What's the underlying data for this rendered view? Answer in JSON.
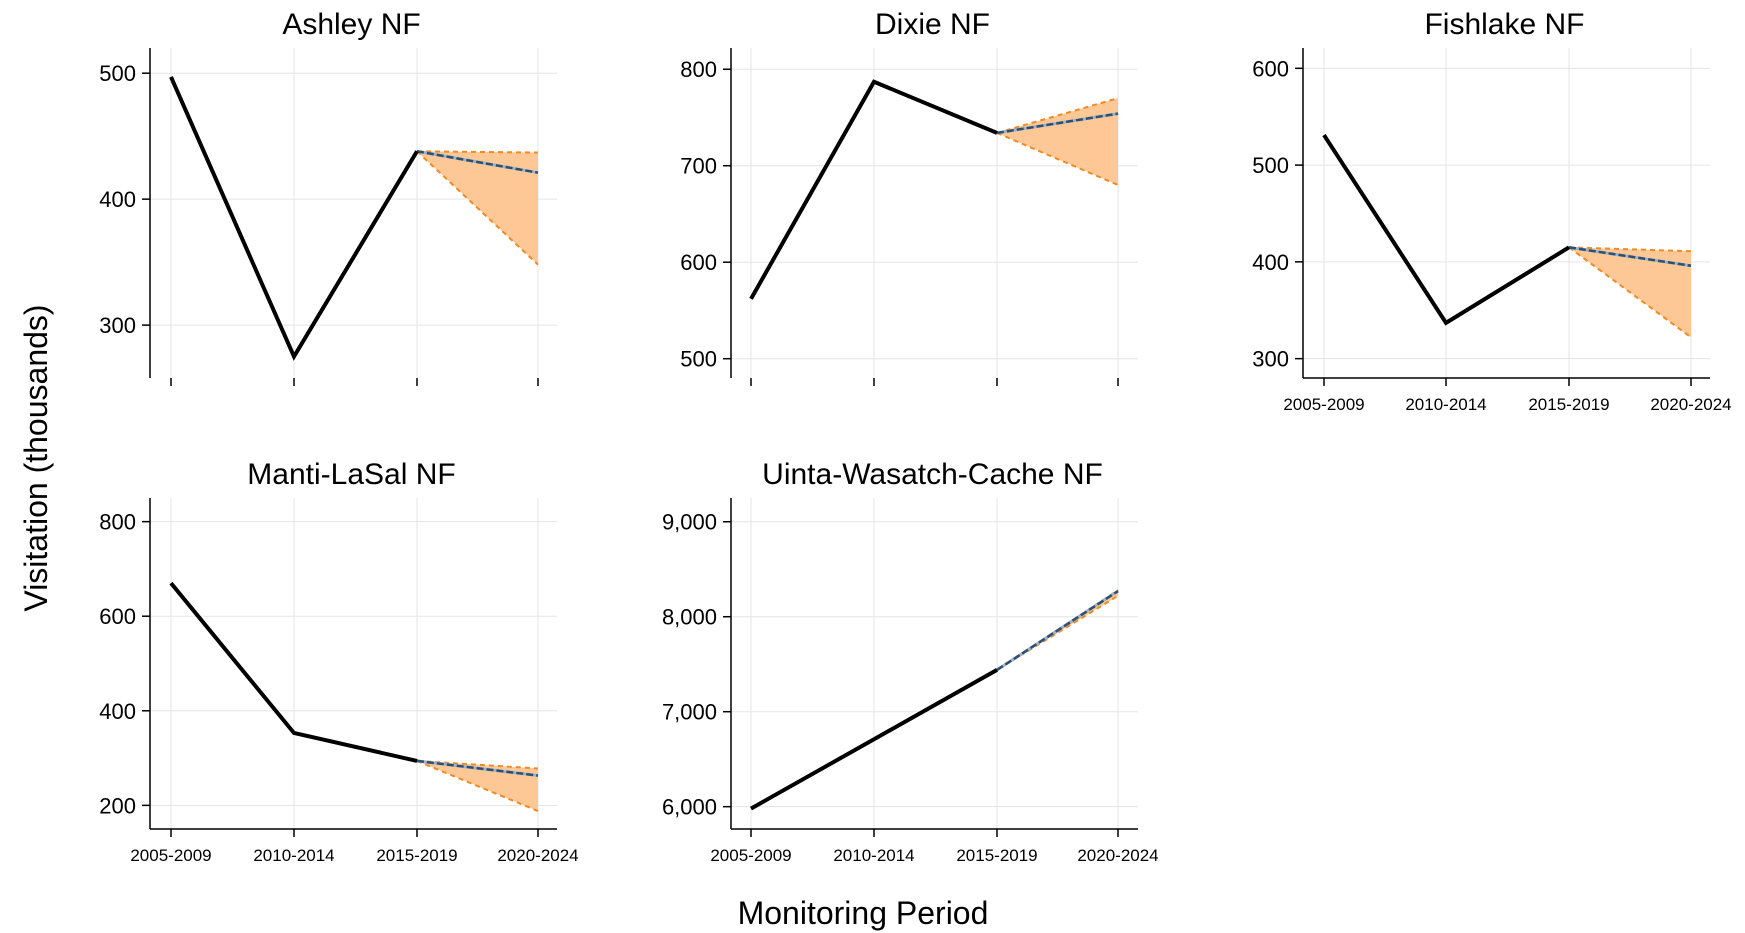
{
  "figure": {
    "ylabel": "Visitation (thousands)",
    "xlabel": "Monitoring Period"
  },
  "colors": {
    "observed_line": "#000000",
    "forecast_line": "#2f4f6f",
    "forecast_band_fill": "#fdc896",
    "forecast_band_edge": "#f08a24",
    "grid": "#e5e5e5"
  },
  "chart_data": [
    {
      "type": "line",
      "title": "Ashley NF",
      "categories": [
        "2005-2009",
        "2010-2014",
        "2015-2019",
        "2020-2024"
      ],
      "ylim": [
        258,
        520
      ],
      "yticks": [
        300,
        400,
        500
      ],
      "ytick_labels": [
        "300",
        "400",
        "500"
      ],
      "show_xtick_labels": false,
      "observed": [
        497,
        275,
        438
      ],
      "forecast": {
        "from": 2,
        "values": [
          438,
          421
        ],
        "upper": [
          438,
          437
        ],
        "lower": [
          438,
          348
        ]
      },
      "grid": true
    },
    {
      "type": "line",
      "title": "Dixie NF",
      "categories": [
        "2005-2009",
        "2010-2014",
        "2015-2019",
        "2020-2024"
      ],
      "ylim": [
        480,
        822
      ],
      "yticks": [
        500,
        600,
        700,
        800
      ],
      "ytick_labels": [
        "500",
        "600",
        "700",
        "800"
      ],
      "show_xtick_labels": false,
      "observed": [
        562,
        787,
        734
      ],
      "forecast": {
        "from": 2,
        "values": [
          734,
          754
        ],
        "upper": [
          734,
          770
        ],
        "lower": [
          734,
          680
        ]
      },
      "grid": true
    },
    {
      "type": "line",
      "title": "Fishlake NF",
      "categories": [
        "2005-2009",
        "2010-2014",
        "2015-2019",
        "2020-2024"
      ],
      "ylim": [
        280,
        621
      ],
      "yticks": [
        300,
        400,
        500,
        600
      ],
      "ytick_labels": [
        "300",
        "400",
        "500",
        "600"
      ],
      "show_xtick_labels": true,
      "observed": [
        531,
        337,
        415
      ],
      "forecast": {
        "from": 2,
        "values": [
          415,
          396
        ],
        "upper": [
          415,
          411
        ],
        "lower": [
          415,
          322
        ]
      },
      "grid": true
    },
    {
      "type": "line",
      "title": "Manti-LaSal NF",
      "categories": [
        "2005-2009",
        "2010-2014",
        "2015-2019",
        "2020-2024"
      ],
      "ylim": [
        150,
        850
      ],
      "yticks": [
        200,
        400,
        600,
        800
      ],
      "ytick_labels": [
        "200",
        "400",
        "600",
        "800"
      ],
      "show_xtick_labels": true,
      "observed": [
        670,
        353,
        294
      ],
      "forecast": {
        "from": 2,
        "values": [
          294,
          263
        ],
        "upper": [
          294,
          278
        ],
        "lower": [
          294,
          188
        ]
      },
      "grid": true
    },
    {
      "type": "line",
      "title": "Uinta-Wasatch-Cache NF",
      "categories": [
        "2005-2009",
        "2010-2014",
        "2015-2019",
        "2020-2024"
      ],
      "ylim": [
        5765,
        9250
      ],
      "yticks": [
        6000,
        7000,
        8000,
        9000
      ],
      "ytick_labels": [
        "6,000",
        "7,000",
        "8,000",
        "9,000"
      ],
      "show_xtick_labels": true,
      "observed": [
        5980,
        6710,
        7440
      ],
      "forecast": {
        "from": 2,
        "values": [
          7440,
          8270
        ],
        "upper": [
          7440,
          8280
        ],
        "lower": [
          7440,
          8220
        ]
      },
      "grid": true
    }
  ]
}
